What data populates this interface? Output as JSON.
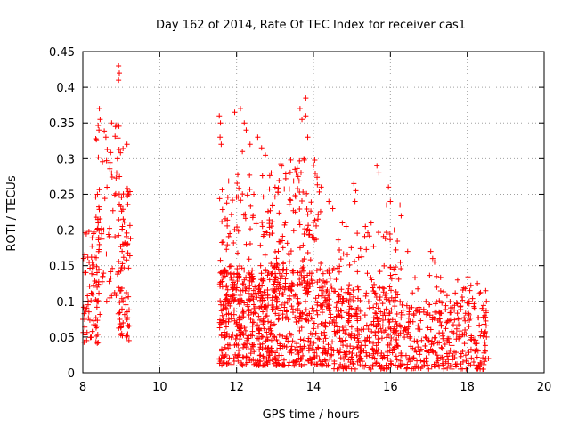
{
  "chart_data": {
    "type": "scatter",
    "title": "Day 162 of 2014, Rate Of TEC Index for receiver cas1",
    "xlabel": "GPS time / hours",
    "ylabel": "ROTI / TECUs",
    "xlim": [
      8,
      20
    ],
    "ylim": [
      0,
      0.45
    ],
    "grid": true,
    "marker": "+",
    "color": "#ff0000",
    "x_ticks": [
      "8",
      "10",
      "12",
      "14",
      "16",
      "18",
      "20"
    ],
    "y_ticks": [
      "0",
      "0.05",
      "0.1",
      "0.15",
      "0.2",
      "0.25",
      "0.3",
      "0.35",
      "0.4",
      "0.45"
    ],
    "series": [
      {
        "name": "ROTI",
        "clusters": [
          {
            "x_range": [
              8.0,
              8.45
            ],
            "y_range": [
              0.04,
              0.2
            ],
            "count": 70
          },
          {
            "x_range": [
              8.3,
              9.05
            ],
            "y_range": [
              0.1,
              0.35
            ],
            "count": 80
          },
          {
            "x_range": [
              8.9,
              9.25
            ],
            "y_range": [
              0.05,
              0.26
            ],
            "count": 70
          },
          {
            "x_range": [
              11.55,
              13.0
            ],
            "y_range": [
              0.01,
              0.15
            ],
            "count": 380
          },
          {
            "x_range": [
              11.55,
              13.0
            ],
            "y_range": [
              0.1,
              0.28
            ],
            "count": 110
          },
          {
            "x_range": [
              13.0,
              14.5
            ],
            "y_range": [
              0.01,
              0.15
            ],
            "count": 320
          },
          {
            "x_range": [
              13.0,
              14.2
            ],
            "y_range": [
              0.12,
              0.3
            ],
            "count": 110
          },
          {
            "x_range": [
              14.5,
              16.2
            ],
            "y_range": [
              0.005,
              0.12
            ],
            "count": 320
          },
          {
            "x_range": [
              14.5,
              16.3
            ],
            "y_range": [
              0.1,
              0.2
            ],
            "count": 60
          },
          {
            "x_range": [
              16.2,
              18.5
            ],
            "y_range": [
              0.005,
              0.1
            ],
            "count": 300
          },
          {
            "x_range": [
              16.4,
              18.5
            ],
            "y_range": [
              0.08,
              0.14
            ],
            "count": 40
          }
        ],
        "points": [
          [
            8.93,
            0.43
          ],
          [
            8.95,
            0.42
          ],
          [
            8.93,
            0.41
          ],
          [
            8.43,
            0.37
          ],
          [
            8.45,
            0.355
          ],
          [
            8.42,
            0.34
          ],
          [
            8.75,
            0.35
          ],
          [
            8.85,
            0.345
          ],
          [
            8.6,
            0.33
          ],
          [
            9.15,
            0.32
          ],
          [
            8.9,
            0.3
          ],
          [
            8.88,
            0.28
          ],
          [
            11.55,
            0.36
          ],
          [
            11.58,
            0.35
          ],
          [
            11.57,
            0.33
          ],
          [
            11.6,
            0.32
          ],
          [
            11.95,
            0.365
          ],
          [
            12.1,
            0.37
          ],
          [
            12.2,
            0.35
          ],
          [
            12.25,
            0.34
          ],
          [
            12.35,
            0.32
          ],
          [
            12.15,
            0.31
          ],
          [
            12.55,
            0.33
          ],
          [
            12.65,
            0.315
          ],
          [
            12.75,
            0.305
          ],
          [
            12.9,
            0.28
          ],
          [
            13.8,
            0.385
          ],
          [
            13.65,
            0.37
          ],
          [
            13.7,
            0.355
          ],
          [
            13.8,
            0.36
          ],
          [
            13.85,
            0.33
          ],
          [
            13.75,
            0.3
          ],
          [
            13.55,
            0.28
          ],
          [
            13.6,
            0.275
          ],
          [
            14.2,
            0.26
          ],
          [
            14.4,
            0.24
          ],
          [
            14.5,
            0.23
          ],
          [
            14.75,
            0.21
          ],
          [
            14.85,
            0.205
          ],
          [
            15.05,
            0.265
          ],
          [
            15.1,
            0.255
          ],
          [
            15.08,
            0.24
          ],
          [
            15.65,
            0.29
          ],
          [
            15.7,
            0.28
          ],
          [
            15.95,
            0.26
          ],
          [
            16.0,
            0.24
          ],
          [
            15.9,
            0.235
          ],
          [
            16.25,
            0.235
          ],
          [
            16.28,
            0.22
          ],
          [
            15.35,
            0.205
          ],
          [
            15.5,
            0.21
          ],
          [
            16.1,
            0.2
          ],
          [
            16.45,
            0.17
          ],
          [
            17.05,
            0.17
          ],
          [
            17.1,
            0.16
          ],
          [
            17.15,
            0.155
          ],
          [
            17.2,
            0.135
          ],
          [
            17.75,
            0.13
          ],
          [
            18.05,
            0.1
          ],
          [
            18.48,
            0.115
          ],
          [
            18.5,
            0.1
          ],
          [
            18.45,
            0.08
          ],
          [
            18.5,
            0.05
          ],
          [
            18.55,
            0.02
          ],
          [
            18.47,
            0.03
          ],
          [
            8.1,
            0.045
          ],
          [
            9.15,
            0.05
          ],
          [
            9.2,
            0.045
          ],
          [
            8.38,
            0.25
          ],
          [
            8.4,
            0.21
          ]
        ]
      }
    ]
  }
}
